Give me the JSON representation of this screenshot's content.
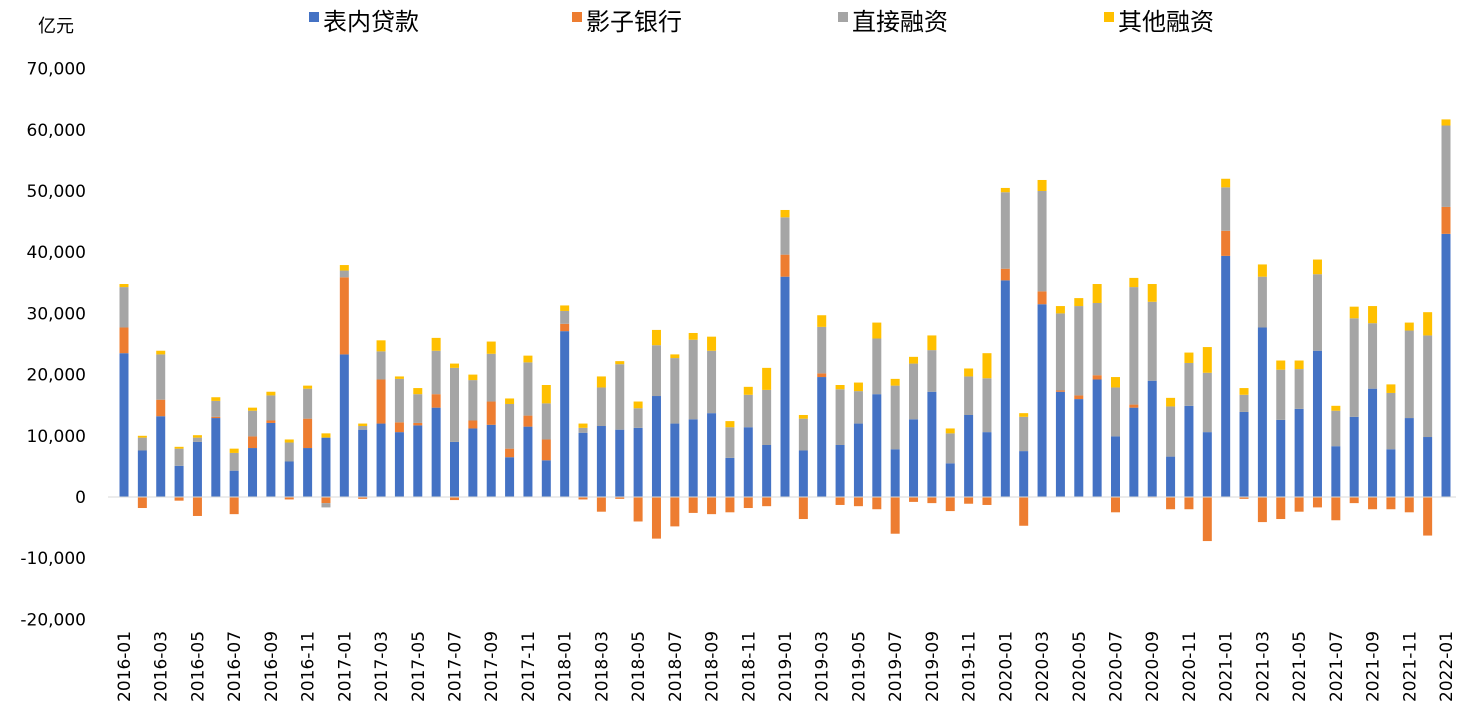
{
  "chart_data": {
    "type": "bar",
    "stacked": true,
    "unit": "亿元",
    "ylim": [
      -20000,
      70000
    ],
    "yticks": [
      -20000,
      -10000,
      0,
      10000,
      20000,
      30000,
      40000,
      50000,
      60000,
      70000
    ],
    "ytick_labels": [
      "-20,000",
      "-10,000",
      "0",
      "10,000",
      "20,000",
      "30,000",
      "40,000",
      "50,000",
      "60,000",
      "70,000"
    ],
    "legend_position": "top",
    "grid": false,
    "colors": {
      "表内贷款": "#4472C4",
      "影子银行": "#ED7D31",
      "直接融资": "#A5A5A5",
      "其他融资": "#FFC000"
    },
    "categories": [
      "2016-01",
      "2016-02",
      "2016-03",
      "2016-04",
      "2016-05",
      "2016-06",
      "2016-07",
      "2016-08",
      "2016-09",
      "2016-10",
      "2016-11",
      "2016-12",
      "2017-01",
      "2017-02",
      "2017-03",
      "2017-04",
      "2017-05",
      "2017-06",
      "2017-07",
      "2017-08",
      "2017-09",
      "2017-10",
      "2017-11",
      "2017-12",
      "2018-01",
      "2018-02",
      "2018-03",
      "2018-04",
      "2018-05",
      "2018-06",
      "2018-07",
      "2018-08",
      "2018-09",
      "2018-10",
      "2018-11",
      "2018-12",
      "2019-01",
      "2019-02",
      "2019-03",
      "2019-04",
      "2019-05",
      "2019-06",
      "2019-07",
      "2019-08",
      "2019-09",
      "2019-10",
      "2019-11",
      "2019-12",
      "2020-01",
      "2020-02",
      "2020-03",
      "2020-04",
      "2020-05",
      "2020-06",
      "2020-07",
      "2020-08",
      "2020-09",
      "2020-10",
      "2020-11",
      "2020-12",
      "2021-01",
      "2021-02",
      "2021-03",
      "2021-04",
      "2021-05",
      "2021-06",
      "2021-07",
      "2021-08",
      "2021-09",
      "2021-10",
      "2021-11",
      "2021-12",
      "2022-01"
    ],
    "xtick_labels": [
      "2016-01",
      "2016-03",
      "2016-05",
      "2016-07",
      "2016-09",
      "2016-11",
      "2017-01",
      "2017-03",
      "2017-05",
      "2017-07",
      "2017-09",
      "2017-11",
      "2018-01",
      "2018-03",
      "2018-05",
      "2018-07",
      "2018-09",
      "2018-11",
      "2019-01",
      "2019-03",
      "2019-05",
      "2019-07",
      "2019-09",
      "2019-11",
      "2020-01",
      "2020-03",
      "2020-05",
      "2020-07",
      "2020-09",
      "2020-11",
      "2021-01",
      "2021-03",
      "2021-05",
      "2021-07",
      "2021-09",
      "2021-11",
      "2022-01"
    ],
    "series": [
      {
        "name": "表内贷款",
        "values": [
          23500,
          7600,
          13200,
          5100,
          9000,
          12900,
          4300,
          8000,
          12100,
          5800,
          8000,
          9700,
          23300,
          11000,
          12000,
          10600,
          11700,
          14600,
          9000,
          11200,
          11800,
          6500,
          11500,
          6000,
          27100,
          10500,
          11600,
          11000,
          11300,
          16500,
          12000,
          12700,
          13700,
          6400,
          11400,
          8500,
          36000,
          7600,
          19600,
          8500,
          12000,
          16800,
          7800,
          12700,
          17200,
          5500,
          13400,
          10600,
          35400,
          7500,
          31500,
          17200,
          16000,
          19200,
          9900,
          14600,
          19000,
          6600,
          14900,
          10600,
          39400,
          13900,
          27700,
          12600,
          14400,
          23900,
          8300,
          13100,
          17700,
          7800,
          12900,
          9800,
          43000
        ]
      },
      {
        "name": "影子银行",
        "values": [
          4200,
          -1800,
          2700,
          -600,
          -3100,
          200,
          -2800,
          1900,
          400,
          -400,
          4800,
          -1000,
          12600,
          -300,
          7200,
          1600,
          400,
          2200,
          -500,
          1300,
          3800,
          1400,
          1800,
          3400,
          1200,
          -400,
          -2400,
          -300,
          -4000,
          -6800,
          -4800,
          -2600,
          -2800,
          -2500,
          -1800,
          -1500,
          3600,
          -3600,
          600,
          -1300,
          -1500,
          -2000,
          -6000,
          -800,
          -1000,
          -2300,
          -1100,
          -1300,
          1900,
          -4700,
          2100,
          200,
          600,
          700,
          -2500,
          500,
          -100,
          -2000,
          -2000,
          -7200,
          4100,
          -300,
          -4100,
          -3600,
          -2400,
          -1700,
          -3800,
          -1000,
          -2000,
          -2000,
          -2500,
          -6300,
          4400
        ]
      },
      {
        "name": "直接融资",
        "values": [
          6600,
          2100,
          7400,
          2800,
          700,
          2600,
          2900,
          4200,
          4100,
          3100,
          4900,
          -700,
          1100,
          600,
          4600,
          7100,
          4700,
          7100,
          12100,
          6600,
          7800,
          7300,
          8700,
          5900,
          2100,
          800,
          6300,
          10700,
          3200,
          8300,
          10700,
          13000,
          10200,
          5000,
          5300,
          9000,
          6100,
          5200,
          7600,
          9100,
          5300,
          9100,
          10400,
          9100,
          6800,
          4900,
          6300,
          8800,
          12500,
          5600,
          16400,
          12600,
          14600,
          11800,
          8000,
          19200,
          12900,
          8200,
          7000,
          9700,
          7100,
          2800,
          8300,
          8200,
          6500,
          12500,
          5800,
          16100,
          10700,
          9200,
          14300,
          16600,
          13300
        ]
      },
      {
        "name": "其他融资",
        "values": [
          500,
          300,
          600,
          300,
          400,
          600,
          700,
          500,
          600,
          500,
          500,
          700,
          900,
          400,
          1800,
          400,
          1000,
          2100,
          700,
          900,
          2000,
          900,
          1100,
          3000,
          900,
          700,
          1800,
          500,
          1100,
          2500,
          600,
          1100,
          2300,
          1000,
          1300,
          3600,
          1200,
          600,
          1900,
          700,
          1400,
          2600,
          1100,
          1100,
          2400,
          800,
          1300,
          4100,
          700,
          600,
          1800,
          1200,
          1300,
          3100,
          1700,
          1500,
          2900,
          1400,
          1700,
          4200,
          1400,
          1100,
          2000,
          1500,
          1400,
          2400,
          800,
          1900,
          2800,
          1400,
          1300,
          3800,
          1000
        ]
      }
    ]
  }
}
